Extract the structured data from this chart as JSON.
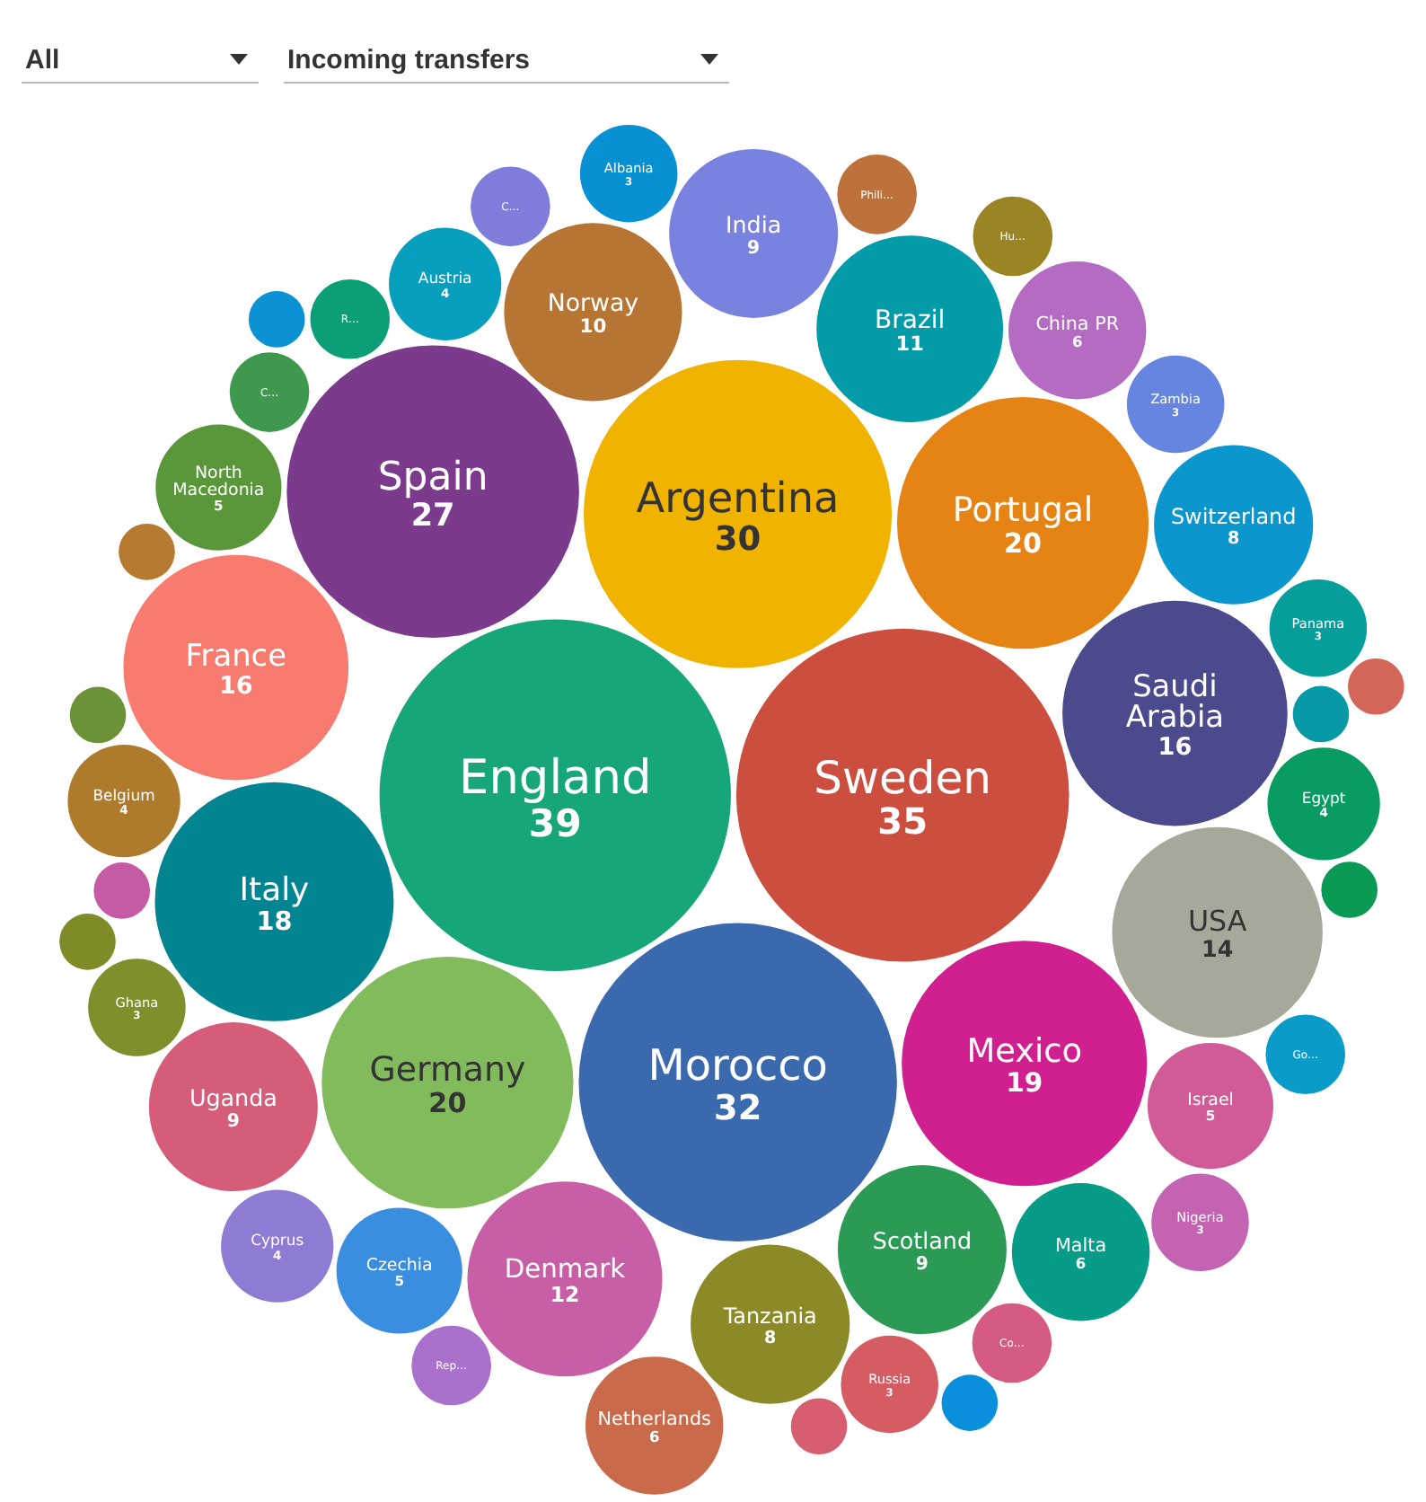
{
  "chart_data": {
    "type": "other",
    "annotations": [
      "All",
      "Incoming transfers"
    ],
    "data_labels": true,
    "categories": [
      "England",
      "Sweden",
      "Morocco",
      "Argentina",
      "Spain",
      "Germany",
      "Portugal",
      "Mexico",
      "Italy",
      "France",
      "Saudi Arabia",
      "USA",
      "Denmark",
      "Brazil",
      "Norway",
      "Scotland",
      "India",
      "Uganda",
      "Switzerland",
      "Tanzania",
      "Netherlands",
      "Malta",
      "China PR",
      "Israel",
      "Czechia",
      "North Macedonia",
      "Austria",
      "Belgium",
      "Egypt",
      "Cyprus",
      "Zambia",
      "Russia",
      "Nigeria",
      "Panama",
      "Ghana",
      "Albania",
      "Phili…",
      "R…",
      "C…",
      "Co…",
      "Hu…",
      "Rep…",
      "Go…",
      "C…",
      null,
      null,
      null,
      null,
      null,
      null,
      null,
      null,
      null,
      null
    ],
    "values": [
      39,
      35,
      32,
      30,
      27,
      20,
      20,
      19,
      18,
      16,
      16,
      14,
      12,
      11,
      10,
      9,
      9,
      9,
      8,
      8,
      6,
      6,
      6,
      5,
      5,
      5,
      4,
      4,
      4,
      4,
      3,
      3,
      3,
      3,
      3,
      3,
      null,
      null,
      null,
      null,
      null,
      null,
      null,
      null,
      null,
      null,
      null,
      null,
      null,
      null,
      null,
      null,
      null,
      null
    ],
    "colors": [
      "#17a57a",
      "#cc4e3e",
      "#3a6aad",
      "#f0b400",
      "#7b3a8b",
      "#82bb5c",
      "#e58414",
      "#d01f8f",
      "#038491",
      "#f87b70",
      "#4a4a8c",
      "#a6a99a",
      "#c85fa6",
      "#049ba8",
      "#b67532",
      "#2a9a54",
      "#7a82e0",
      "#d55d79",
      "#0b97ce",
      "#8c8a26",
      "#c96a4b",
      "#069c88",
      "#b46cc3",
      "#d05b97",
      "#3a8ee0",
      "#5a973b",
      "#079fbd",
      "#ad7b2b",
      "#089c62",
      "#8f7ad4",
      "#6685e0",
      "#d65c64",
      "#c463b2",
      "#069e9a",
      "#7f8f2c",
      "#0791d2",
      "#bd723b",
      "#0c9e77",
      "#3e994e",
      "#d55b83",
      "#9a8424",
      "#a970cc",
      "#0a9bc8",
      "#7e7ddc",
      "#0899a6",
      "#c65ba5",
      "#b67a30",
      "#6c9338",
      "#0a92d4",
      "#0b9a56",
      "#0a8fdc",
      "#d4675a",
      "#808b27",
      "#d75e70"
    ]
  }
}
